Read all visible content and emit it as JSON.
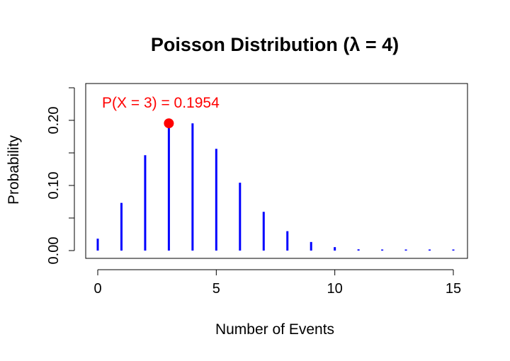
{
  "chart_data": {
    "type": "bar",
    "title": "Poisson Distribution (λ = 4)",
    "xlabel": "Number of Events",
    "ylabel": "Probability",
    "x": [
      0,
      1,
      2,
      3,
      4,
      5,
      6,
      7,
      8,
      9,
      10,
      11,
      12,
      13,
      14,
      15
    ],
    "values": [
      0.0183,
      0.0733,
      0.1465,
      0.1954,
      0.1954,
      0.1563,
      0.1042,
      0.0595,
      0.0298,
      0.0132,
      0.0053,
      0.0019,
      0.0006,
      0.0002,
      0.0001,
      0.0
    ],
    "xlim": [
      0,
      15
    ],
    "ylim": [
      0,
      0.25
    ],
    "x_ticks": [
      "0",
      "5",
      "10",
      "15"
    ],
    "x_tick_values": [
      0,
      5,
      10,
      15
    ],
    "y_ticks": [
      "0.00",
      "0.10",
      "0.20"
    ],
    "y_tick_values": [
      0,
      0.1,
      0.2
    ],
    "y_minor_tick_values": [
      0.05,
      0.15,
      0.25
    ],
    "bar_color": "#0000ff",
    "highlight": {
      "x": 3,
      "y": 0.1954,
      "label": "P(X = 3) = 0.1954",
      "color": "#ff0000"
    },
    "grid": false,
    "legend": "none"
  }
}
